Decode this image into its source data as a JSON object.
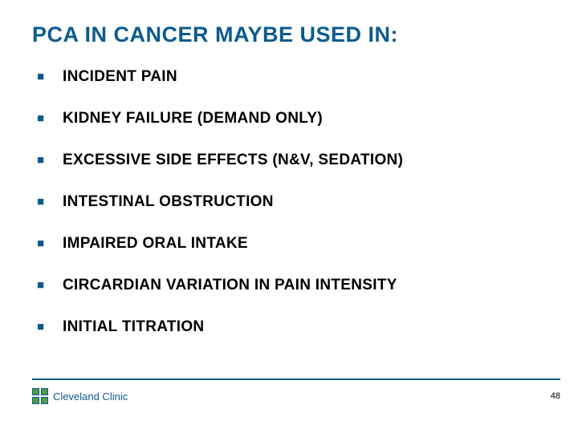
{
  "title": "PCA IN CANCER MAYBE USED IN:",
  "bullets": [
    "INCIDENT PAIN",
    "KIDNEY FAILURE (DEMAND ONLY)",
    "EXCESSIVE SIDE EFFECTS (N&V, SEDATION)",
    "INTESTINAL OBSTRUCTION",
    "IMPAIRED ORAL INTAKE",
    "CIRCARDIAN VARIATION IN PAIN INTENSITY",
    "INITIAL TITRATION"
  ],
  "footer": {
    "org": "Cleveland Clinic",
    "page": "48"
  },
  "colors": {
    "brand_blue": "#0b5b8e",
    "brand_green": "#4f9b47",
    "text_black": "#000000",
    "background": "#ffffff"
  },
  "bullet_marker": "■"
}
